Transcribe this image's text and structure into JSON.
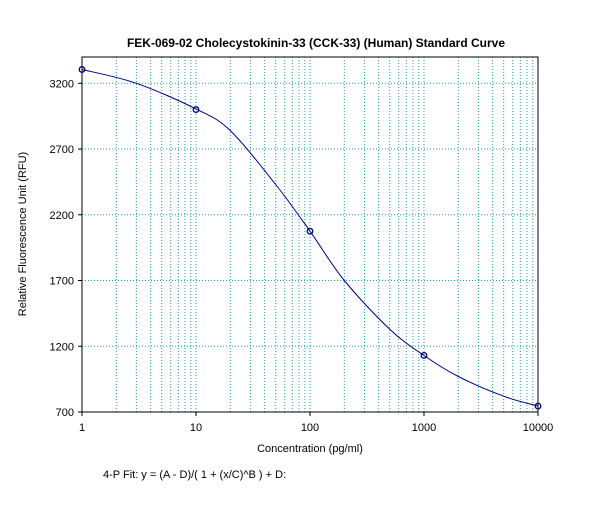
{
  "chart_data": {
    "type": "scatter",
    "title": "FEK-069-02 Cholecystokinin-33 (CCK-33) (Human) Standard Curve",
    "xlabel": "Concentration (pg/ml)",
    "ylabel": "Relative Fluorescence Unit (RFU)",
    "x_scale": "log",
    "xlim": [
      1,
      10000
    ],
    "ylim": [
      700,
      3400
    ],
    "x_ticks": [
      1,
      10,
      100,
      1000,
      10000
    ],
    "x_tick_labels": [
      "1",
      "10",
      "100",
      "1000",
      "10000"
    ],
    "y_ticks": [
      700,
      1200,
      1700,
      2200,
      2700,
      3200
    ],
    "y_tick_labels": [
      "700",
      "1200",
      "1700",
      "2200",
      "2700",
      "3200"
    ],
    "grid": true,
    "series": [
      {
        "points": [
          {
            "x": 1,
            "y": 3305
          },
          {
            "x": 10,
            "y": 3000
          },
          {
            "x": 100,
            "y": 2075
          },
          {
            "x": 1000,
            "y": 1130
          },
          {
            "x": 10000,
            "y": 745
          }
        ]
      }
    ],
    "fit_curve": [
      {
        "x": 1,
        "y": 3305
      },
      {
        "x": 3,
        "y": 3200
      },
      {
        "x": 10,
        "y": 3005
      },
      {
        "x": 20,
        "y": 2840
      },
      {
        "x": 50,
        "y": 2430
      },
      {
        "x": 100,
        "y": 2075
      },
      {
        "x": 200,
        "y": 1700
      },
      {
        "x": 500,
        "y": 1330
      },
      {
        "x": 1000,
        "y": 1130
      },
      {
        "x": 2000,
        "y": 970
      },
      {
        "x": 5000,
        "y": 820
      },
      {
        "x": 10000,
        "y": 745
      }
    ],
    "fit_equation": "4-P Fit: y = (A - D)/( 1 + (x/C)^B ) + D:",
    "colors": {
      "curve": "#000080",
      "points": "#000080",
      "grid": "#2a9aa8",
      "axis": "#000000"
    }
  }
}
